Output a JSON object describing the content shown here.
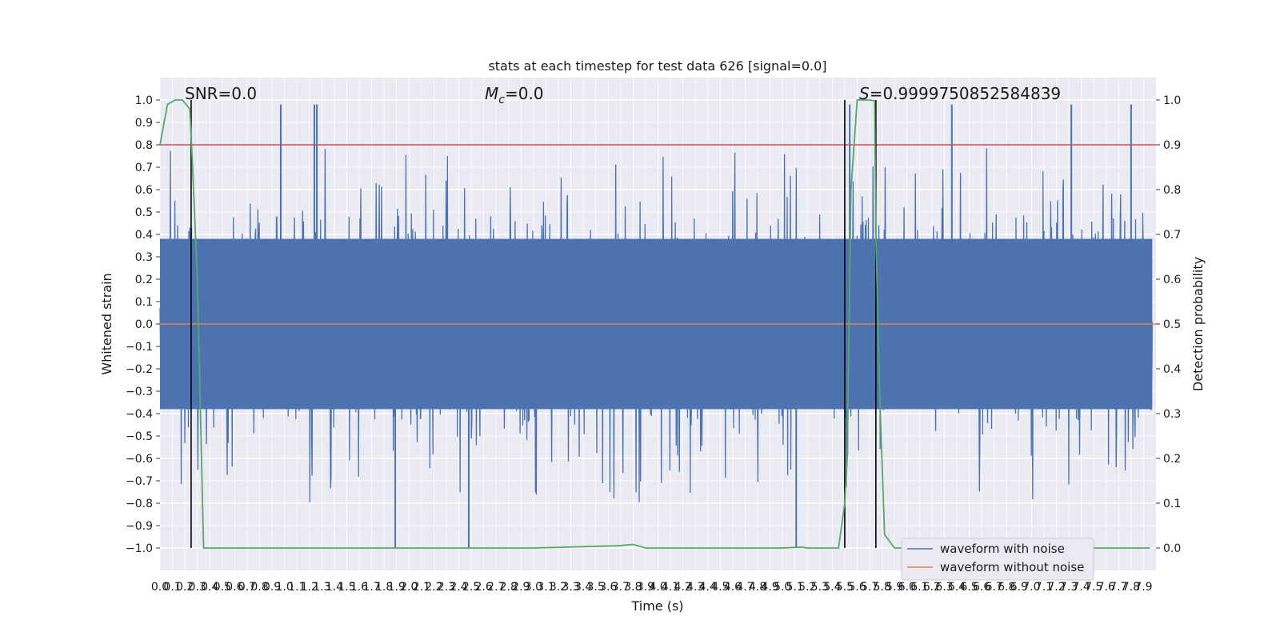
{
  "chart_data": {
    "type": "line",
    "title": "stats at each timestep for test data 626 [signal=0.0]",
    "xlabel": "Time (s)",
    "ylabel": "Whitened strain",
    "ylabel_right": "Detection probability",
    "xlim": [
      0.0,
      8.0
    ],
    "ylim": [
      -1.1,
      1.1
    ],
    "ylim_right": [
      -0.05,
      1.05
    ],
    "x_ticks_step": 0.1,
    "x_ticks_max": 7.9,
    "y_ticks": [
      -1.0,
      -0.9,
      -0.8,
      -0.7,
      -0.6,
      -0.5,
      -0.4,
      -0.3,
      -0.2,
      -0.1,
      0.0,
      0.1,
      0.2,
      0.3,
      0.4,
      0.5,
      0.6,
      0.7,
      0.8,
      0.9,
      1.0
    ],
    "y_ticks_right": [
      0.0,
      0.1,
      0.2,
      0.3,
      0.4,
      0.5,
      0.6,
      0.7,
      0.8,
      0.9,
      1.0
    ],
    "grid": true,
    "annotations": {
      "snr": "SNR=0.0",
      "mc_symbol": "M",
      "mc_sub": "c",
      "mc_value": "=0.0",
      "s_symbol": "S",
      "s_value": "=0.9999750852584839"
    },
    "threshold": {
      "value": 0.9,
      "axis": "right",
      "color": "#c44e52"
    },
    "vertical_lines_x": [
      0.25,
      5.5,
      5.75
    ],
    "legend": {
      "position": "bottom-right",
      "entries": [
        {
          "label": "waveform with noise",
          "color": "#4c72b0"
        },
        {
          "label": "waveform without noise",
          "color": "#dd8452"
        }
      ]
    },
    "series": [
      {
        "name": "waveform with noise",
        "color": "#4c72b0",
        "kind": "noise",
        "amplitude_range": [
          -1.0,
          1.0
        ],
        "typical_envelope": [
          -0.4,
          0.4
        ],
        "peak_top_x": [
          0.97,
          1.24,
          1.26,
          5.54,
          6.36,
          7.32,
          7.8
        ],
        "peak_bottom_x": [
          2.48,
          1.89,
          5.11
        ]
      },
      {
        "name": "waveform without noise",
        "color": "#dd8452",
        "kind": "flat",
        "value": 0.0
      },
      {
        "name": "Detection probability",
        "color": "#55a868",
        "axis": "right",
        "x": [
          0.0,
          0.06,
          0.12,
          0.18,
          0.24,
          0.26,
          0.3,
          0.35,
          0.4,
          0.6,
          1.0,
          2.0,
          3.0,
          3.68,
          3.8,
          3.9,
          4.0,
          5.0,
          5.15,
          5.2,
          5.3,
          5.4,
          5.45,
          5.5,
          5.52,
          5.55,
          5.6,
          5.65,
          5.7,
          5.74,
          5.75,
          5.78,
          5.82,
          5.9,
          6.0,
          7.0,
          7.95
        ],
        "y": [
          0.9,
          0.99,
          1.0,
          1.0,
          0.98,
          0.86,
          0.6,
          0.0,
          -0.0,
          0.0,
          0.0,
          0.0,
          0.0,
          0.005,
          0.008,
          0.0,
          0.0,
          0.0,
          0.002,
          0.0,
          0.0,
          0.0,
          0.0,
          0.1,
          0.2,
          0.8,
          1.0,
          1.0,
          1.0,
          0.998,
          0.7,
          0.35,
          0.03,
          0.0,
          0.0,
          0.0,
          0.0
        ]
      }
    ]
  }
}
